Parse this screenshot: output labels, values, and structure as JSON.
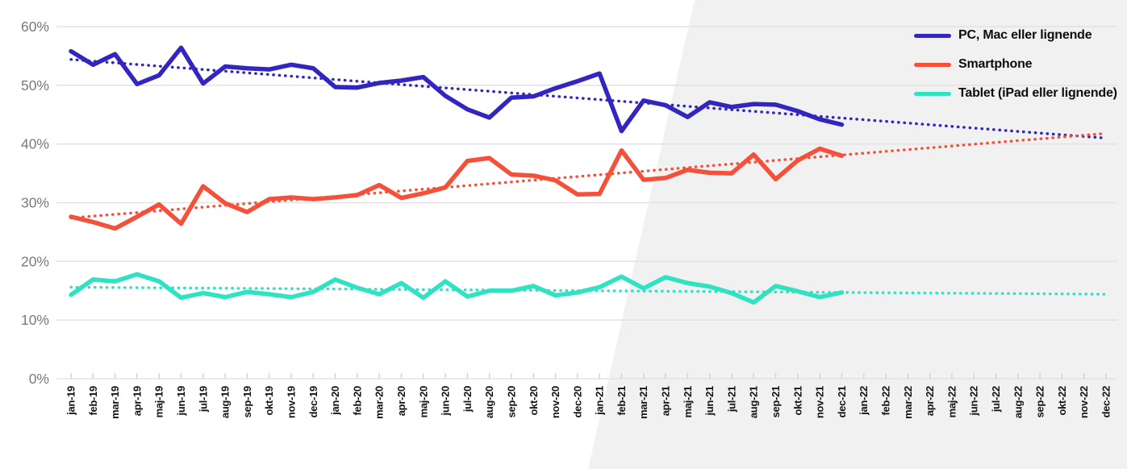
{
  "colors": {
    "pc": "#3226bf",
    "smartphone": "#f4503a",
    "tablet": "#2fe2c1",
    "grid": "#e3e3e4",
    "tick": "#d2d2d4",
    "y_label": "#7a7a7c",
    "x_label": "#141414",
    "bg_shade": "#f1f1f2"
  },
  "legend": {
    "items": [
      {
        "key": "pc",
        "label": "PC, Mac eller lignende"
      },
      {
        "key": "smartphone",
        "label": "Smartphone"
      },
      {
        "key": "tablet",
        "label": "Tablet (iPad eller lignende)"
      }
    ]
  },
  "chart_data": {
    "type": "line",
    "title": "",
    "xlabel": "",
    "ylabel": "",
    "ylim": [
      0,
      60
    ],
    "grid": true,
    "legend_position": "top-right",
    "y_tick_labels": [
      "0%",
      "10%",
      "20%",
      "30%",
      "40%",
      "50%",
      "60%"
    ],
    "y_tick_values": [
      0,
      10,
      20,
      30,
      40,
      50,
      60
    ],
    "x_labels": [
      "jan-19",
      "feb-19",
      "mar-19",
      "apr-19",
      "maj-19",
      "jun-19",
      "jul-19",
      "aug-19",
      "sep-19",
      "okt-19",
      "nov-19",
      "dec-19",
      "jan-20",
      "feb-20",
      "mar-20",
      "apr-20",
      "maj-20",
      "jun-20",
      "jul-20",
      "aug-20",
      "sep-20",
      "okt-20",
      "nov-20",
      "dec-20",
      "jan-21",
      "feb-21",
      "mar-21",
      "apr-21",
      "maj-21",
      "jun-21",
      "jul-21",
      "aug-21",
      "sep-21",
      "okt-21",
      "nov-21",
      "dec-21",
      "jan-22",
      "feb-22",
      "mar-22",
      "apr-22",
      "maj-22",
      "jun-22",
      "jul-22",
      "aug-22",
      "sep-22",
      "okt-22",
      "nov-22",
      "dec-22"
    ],
    "series": [
      {
        "name": "PC, Mac eller lignende",
        "color_key": "pc",
        "unit": "%",
        "values": [
          55.8,
          53.5,
          55.3,
          50.2,
          51.7,
          56.4,
          50.3,
          53.2,
          52.9,
          52.7,
          53.5,
          52.9,
          49.7,
          49.6,
          50.4,
          50.8,
          51.4,
          48.2,
          45.9,
          44.5,
          47.9,
          48.1,
          49.5,
          50.7,
          52.0,
          42.2,
          47.4,
          46.6,
          44.6,
          47.1,
          46.3,
          46.8,
          46.7,
          45.6,
          44.2,
          43.3
        ]
      },
      {
        "name": "Smartphone",
        "color_key": "smartphone",
        "unit": "%",
        "values": [
          27.6,
          26.7,
          25.6,
          27.6,
          29.7,
          26.4,
          32.8,
          29.9,
          28.4,
          30.6,
          30.9,
          30.6,
          30.9,
          31.3,
          33.0,
          30.8,
          31.6,
          32.6,
          37.1,
          37.6,
          34.8,
          34.6,
          33.8,
          31.4,
          31.5,
          38.9,
          33.9,
          34.2,
          35.6,
          35.1,
          35.0,
          38.2,
          34.0,
          37.2,
          39.2,
          38.0
        ]
      },
      {
        "name": "Tablet (iPad eller lignende)",
        "color_key": "tablet",
        "unit": "%",
        "values": [
          14.3,
          16.9,
          16.6,
          17.8,
          16.6,
          13.8,
          14.6,
          13.9,
          14.8,
          14.4,
          13.9,
          14.8,
          16.9,
          15.5,
          14.4,
          16.3,
          13.8,
          16.6,
          14.0,
          15.0,
          15.0,
          15.8,
          14.2,
          14.7,
          15.6,
          17.4,
          15.4,
          17.3,
          16.3,
          15.7,
          14.6,
          13.0,
          15.8,
          14.9,
          13.9,
          14.7
        ]
      }
    ],
    "solid_data_range": {
      "first_label": "jan-19",
      "last_label": "dec-21",
      "last_index": 35
    },
    "trendlines": [
      {
        "series": "PC, Mac eller lignende",
        "color_key": "pc",
        "start_value": 54.4,
        "end_value": 41.0
      },
      {
        "series": "Smartphone",
        "color_key": "smartphone",
        "start_value": 27.4,
        "end_value": 41.8
      },
      {
        "series": "Tablet (iPad eller lignende)",
        "color_key": "tablet",
        "start_value": 15.6,
        "end_value": 14.4
      }
    ]
  }
}
